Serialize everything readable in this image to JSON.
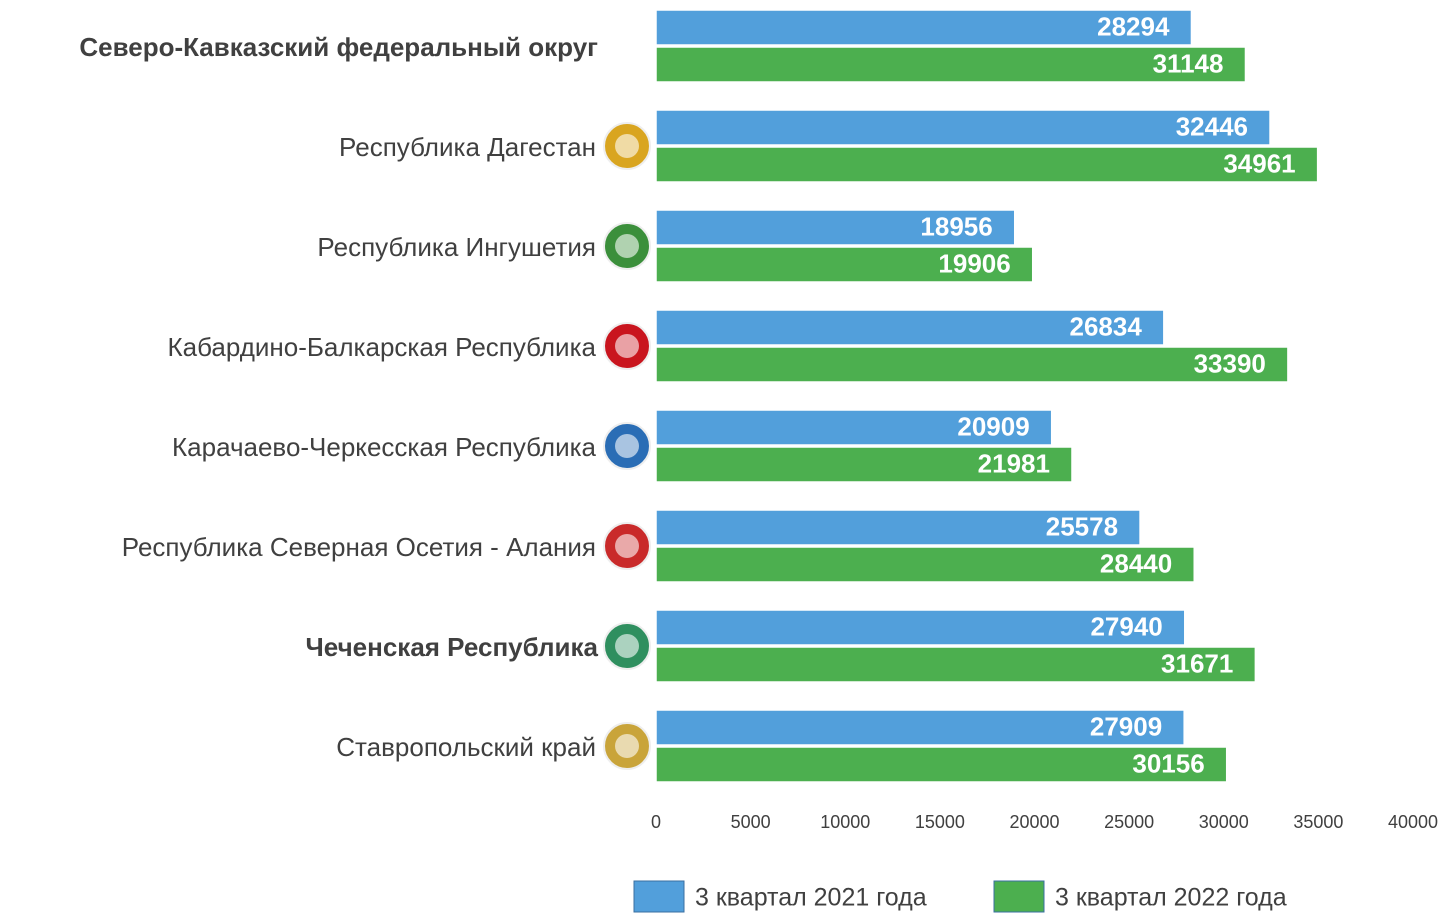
{
  "chart_data": {
    "type": "bar",
    "orientation": "horizontal",
    "categories": [
      "Северо-Кавказский федеральный округ",
      "Республика Дагестан",
      "Республика Ингушетия",
      "Кабардино-Балкарская  Республика",
      "Карачаево-Черкесская  Республика",
      "Республика  Северная Осетия - Алания",
      "Чеченская Республика",
      "Ставропольский край"
    ],
    "series": [
      {
        "name": "3 квартал 2021 года",
        "color": "#529fdb",
        "values": [
          28294,
          32446,
          18956,
          26834,
          20909,
          25578,
          27940,
          27909
        ]
      },
      {
        "name": "3 квартал 2022 года",
        "color": "#4caf4f",
        "values": [
          31148,
          34961,
          19906,
          33390,
          21981,
          28440,
          31671,
          30156
        ]
      }
    ],
    "xlim": [
      0,
      40000
    ],
    "xticks": [
      0,
      5000,
      10000,
      15000,
      20000,
      25000,
      30000,
      35000,
      40000
    ],
    "legend": "bottom"
  }
}
